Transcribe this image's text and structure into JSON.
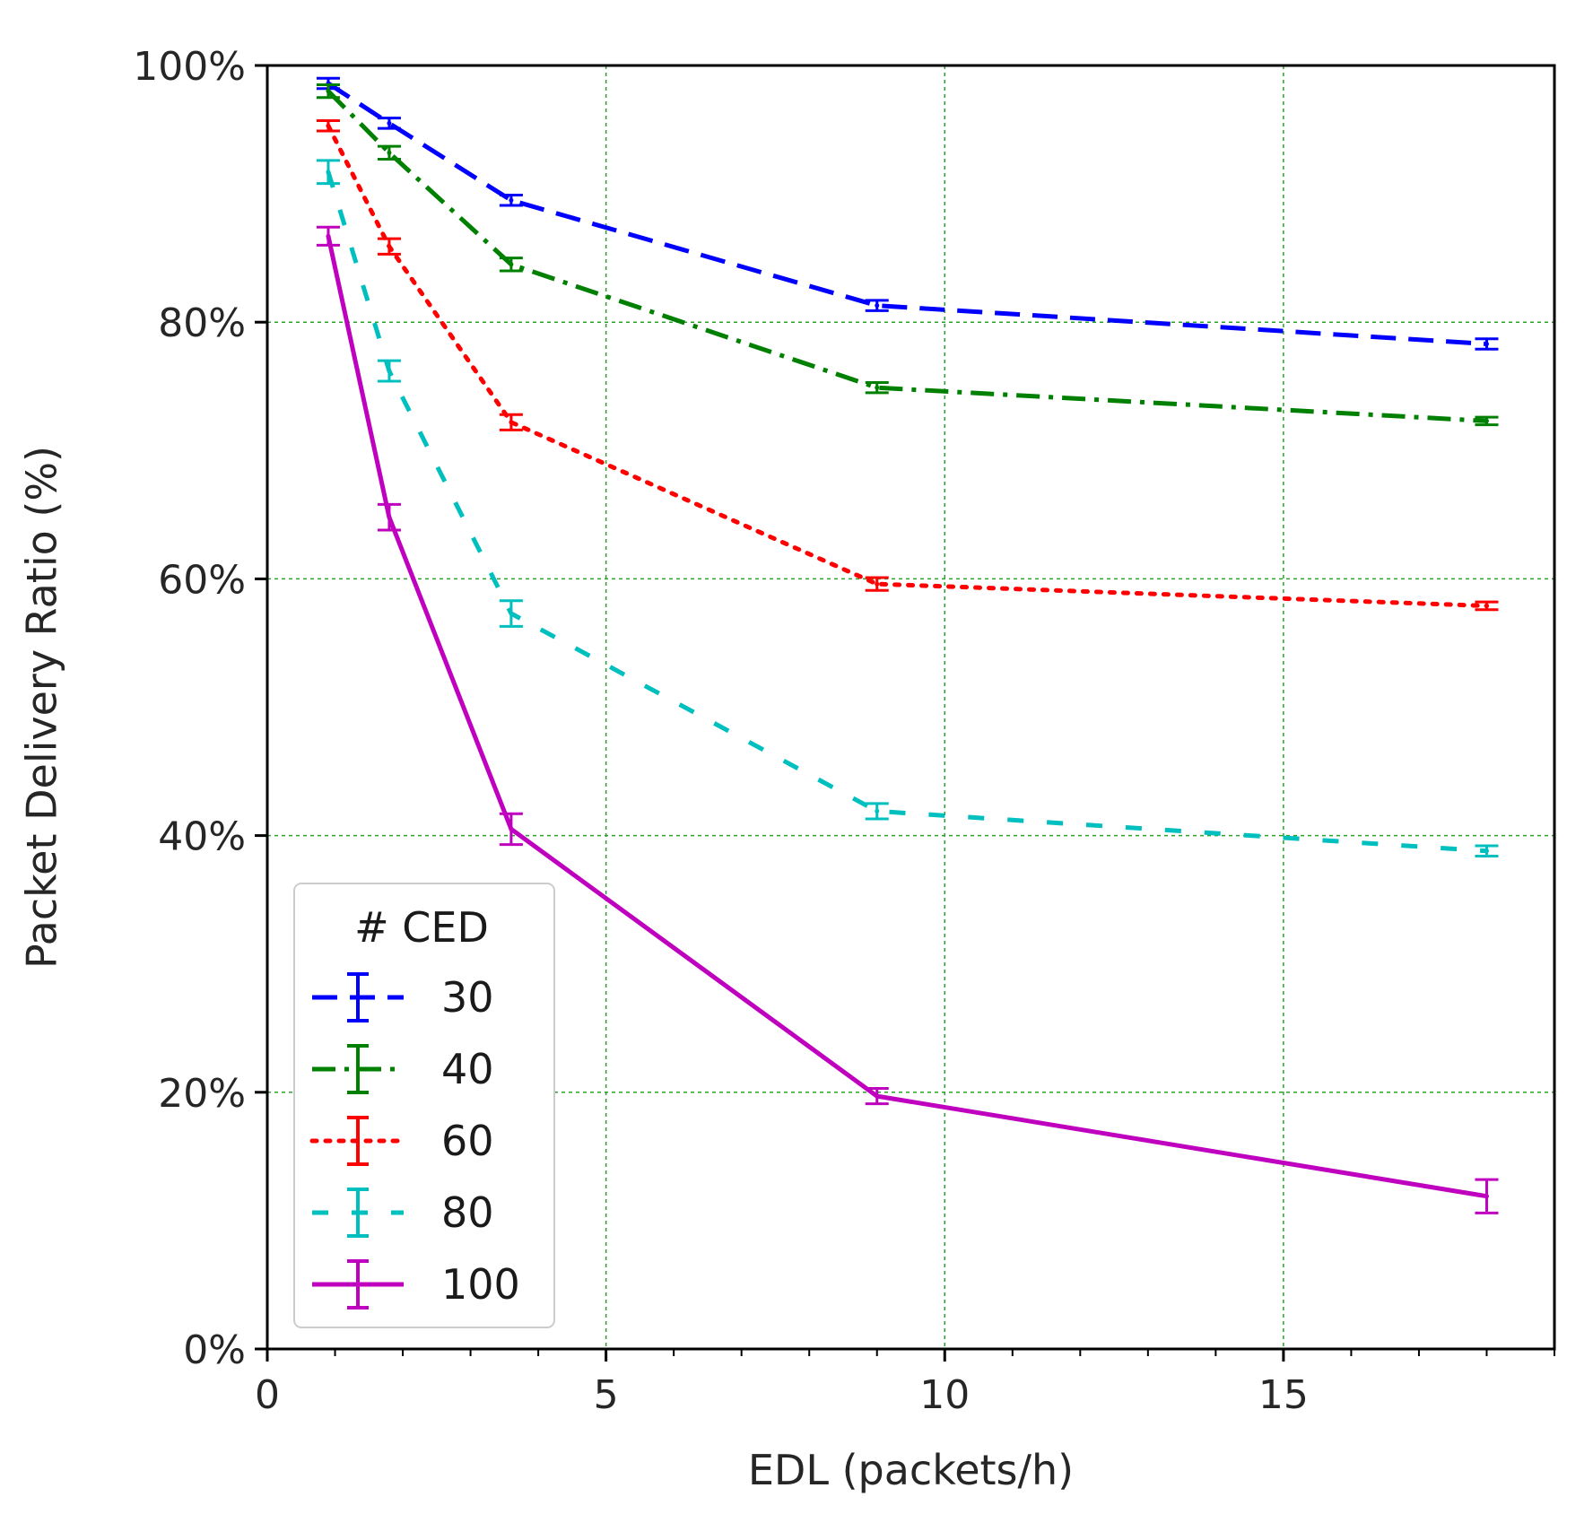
{
  "chart_data": {
    "type": "line",
    "title": "",
    "xlabel": "EDL (packets/h)",
    "ylabel": "Packet Delivery Ratio (%)",
    "xlim": [
      0,
      19
    ],
    "ylim": [
      0,
      100
    ],
    "x_ticks": [
      0,
      5,
      10,
      15
    ],
    "x_tick_labels": [
      "0",
      "5",
      "10",
      "15"
    ],
    "y_ticks": [
      0,
      20,
      40,
      60,
      80,
      100
    ],
    "y_tick_labels": [
      "0%",
      "20%",
      "40%",
      "60%",
      "80%",
      "100%"
    ],
    "grid": true,
    "legend": {
      "title": "# CED",
      "position": "lower-left"
    },
    "x": [
      0.9,
      1.8,
      3.6,
      9.0,
      18.0
    ],
    "series": [
      {
        "name": "30",
        "color": "#0000ff",
        "style": "dashed",
        "values": [
          98.6,
          95.5,
          89.5,
          81.3,
          78.3
        ],
        "errors": [
          0.4,
          0.4,
          0.4,
          0.4,
          0.4
        ]
      },
      {
        "name": "40",
        "color": "#008000",
        "style": "dashdot",
        "values": [
          98.0,
          93.2,
          84.5,
          74.9,
          72.3
        ],
        "errors": [
          0.5,
          0.5,
          0.5,
          0.4,
          0.3
        ]
      },
      {
        "name": "60",
        "color": "#ff0000",
        "style": "dotted",
        "values": [
          95.3,
          85.9,
          72.2,
          59.6,
          57.9
        ],
        "errors": [
          0.4,
          0.6,
          0.6,
          0.5,
          0.3
        ]
      },
      {
        "name": "80",
        "color": "#00bfbf",
        "style": "dashed2",
        "values": [
          91.7,
          76.2,
          57.3,
          41.9,
          38.8
        ],
        "errors": [
          0.9,
          0.8,
          1.0,
          0.6,
          0.4
        ]
      },
      {
        "name": "100",
        "color": "#bf00bf",
        "style": "solid",
        "values": [
          86.7,
          64.8,
          40.5,
          19.7,
          11.9
        ],
        "errors": [
          0.7,
          1.0,
          1.2,
          0.6,
          1.3
        ]
      }
    ]
  }
}
